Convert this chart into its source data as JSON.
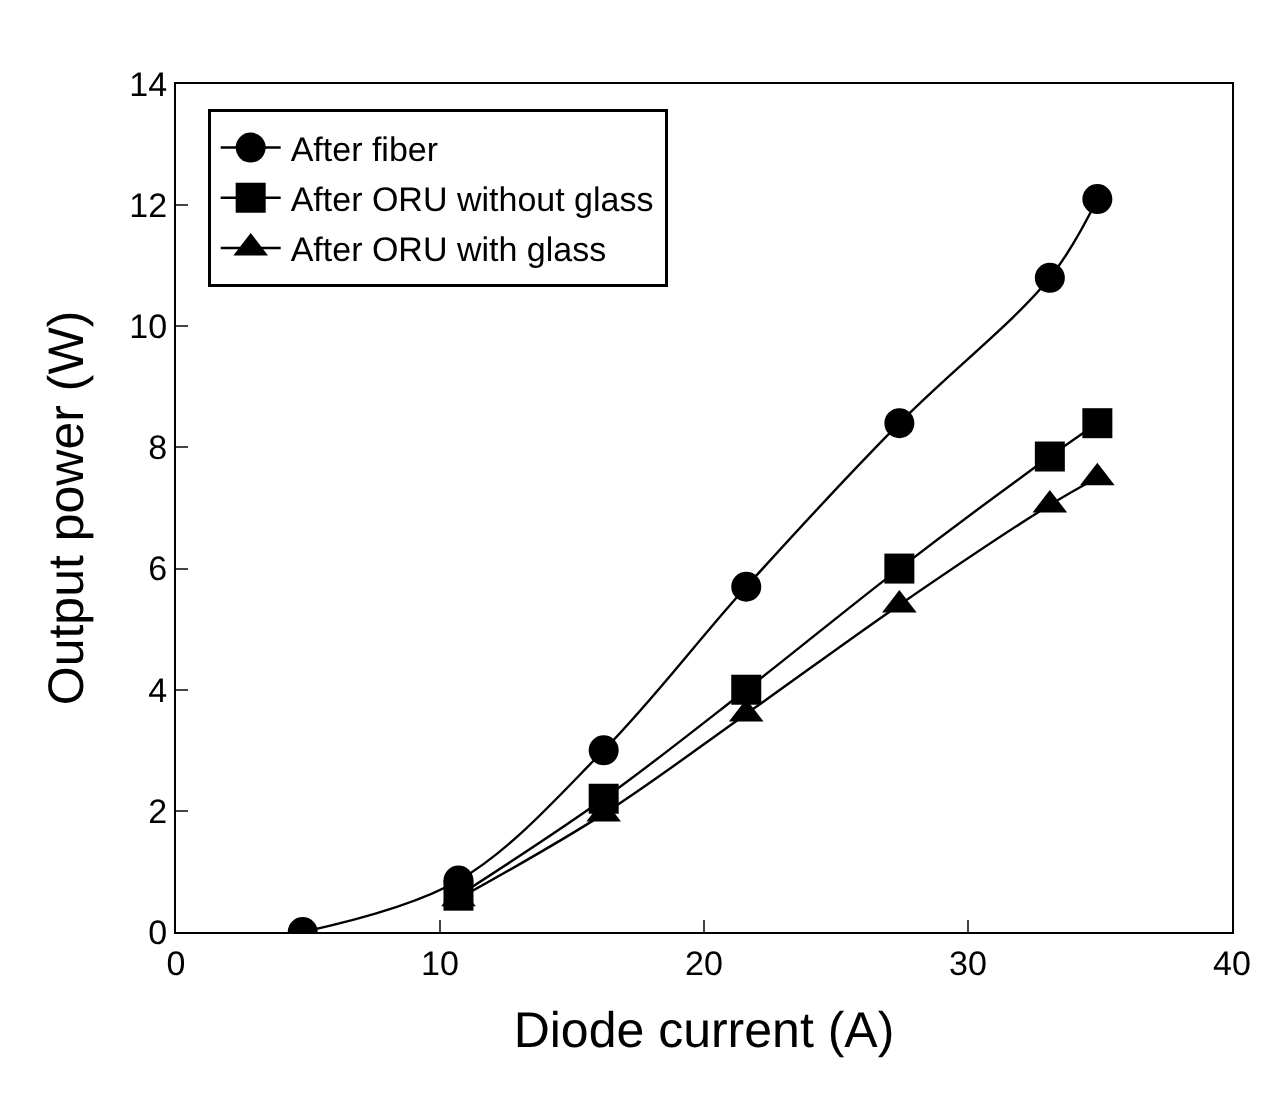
{
  "chart_data": {
    "type": "line",
    "xlabel": "Diode current (A)",
    "ylabel": "Output power (W)",
    "x": [
      4.8,
      10.7,
      16.2,
      21.6,
      27.4,
      33.1,
      34.9
    ],
    "xlim": [
      0,
      40
    ],
    "xticks": [
      0,
      10,
      20,
      30,
      40
    ],
    "ylim": [
      0,
      14
    ],
    "yticks": [
      0,
      2,
      4,
      6,
      8,
      10,
      12,
      14
    ],
    "legend": "top left",
    "line_style": "solid",
    "series": [
      {
        "name": "After fiber",
        "color": "#000000",
        "marker": "circle",
        "values": [
          0,
          0.85,
          3.0,
          5.7,
          8.4,
          10.8,
          12.1
        ]
      },
      {
        "name": "After ORU without glass",
        "color": "#000000",
        "marker": "square",
        "values": [
          null,
          0.6,
          2.2,
          4.0,
          6.0,
          7.85,
          8.4
        ]
      },
      {
        "name": "After ORU with glass",
        "color": "#000000",
        "marker": "triangle",
        "values": [
          null,
          0.55,
          1.95,
          3.6,
          5.4,
          7.05,
          7.5
        ]
      }
    ]
  }
}
